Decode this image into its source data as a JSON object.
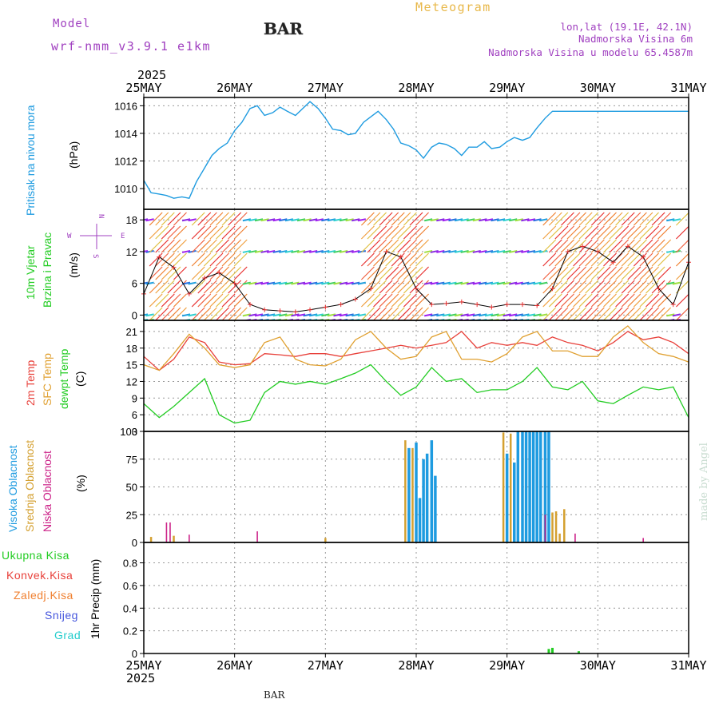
{
  "header": {
    "model_label": "Model",
    "model_name": "wrf-nmm_v3.9.1 e1km",
    "station": "BAR",
    "chart_title": "Meteogram",
    "coords": "lon,lat (19.1E, 42.1N)",
    "elevation": "Nadmorska Visina 6m",
    "model_elevation": "Nadmorska Visina u modelu 65.4587m"
  },
  "footer": {
    "station": "BAR",
    "credit": "made by Angel"
  },
  "x_axis": {
    "year": "2025",
    "ticks": [
      "25MAY",
      "26MAY",
      "27MAY",
      "28MAY",
      "29MAY",
      "30MAY",
      "31MAY"
    ]
  },
  "colors": {
    "pressure": "#1e9be0",
    "t2m": "#e8403a",
    "sfc": "#e0a030",
    "dewpt": "#22cc22",
    "high_cloud": "#1e9be0",
    "mid_cloud": "#d4a030",
    "low_cloud": "#cc2288",
    "title_purple": "#a040c0",
    "title_orange": "#e8b84a"
  },
  "chart_data": [
    {
      "type": "line",
      "panel": "pressure",
      "ylabel_main": "Pritisak na nivou mora",
      "ylabel_unit": "(hPa)",
      "ylim": [
        1008.5,
        1016.6
      ],
      "yticks": [
        1010,
        1012,
        1014,
        1016
      ],
      "x": [
        0,
        0.08,
        0.17,
        0.25,
        0.33,
        0.42,
        0.5,
        0.58,
        0.67,
        0.75,
        0.83,
        0.92,
        1.0,
        1.08,
        1.17,
        1.25,
        1.33,
        1.42,
        1.5,
        1.58,
        1.67,
        1.75,
        1.83,
        1.92,
        2.0,
        2.08,
        2.17,
        2.25,
        2.33,
        2.42,
        2.5,
        2.58,
        2.67,
        2.75,
        2.83,
        2.92,
        3.0,
        3.08,
        3.17,
        3.25,
        3.33,
        3.42,
        3.5,
        3.58,
        3.67,
        3.75,
        3.83,
        3.92,
        4.0,
        4.08,
        4.17,
        4.25,
        4.33,
        4.42,
        4.5,
        4.58,
        4.67,
        4.75,
        4.83,
        4.92,
        5.0,
        5.08,
        5.17,
        5.25,
        5.33,
        5.42,
        5.5,
        5.58,
        5.67,
        5.75,
        5.83,
        5.92,
        6.0
      ],
      "series": [
        {
          "values": [
            1010.6,
            1009.7,
            1009.6,
            1009.5,
            1009.3,
            1009.4,
            1009.3,
            1010.5,
            1011.5,
            1012.4,
            1012.9,
            1013.3,
            1014.2,
            1014.8,
            1015.8,
            1016.0,
            1015.3,
            1015.5,
            1015.9,
            1015.6,
            1015.3,
            1015.8,
            1016.3,
            1015.8,
            1015.1,
            1014.3,
            1014.2,
            1013.9,
            1014.0,
            1014.8,
            1015.2,
            1015.6,
            1015.0,
            1014.3,
            1013.3,
            1013.1,
            1012.8,
            1012.2,
            1013.0,
            1013.3,
            1013.2,
            1012.9,
            1012.4,
            1013.0,
            1013.0,
            1013.4,
            1012.9,
            1013.0,
            1013.4,
            1013.7,
            1013.5,
            1013.7,
            1014.4,
            1015.1,
            1015.6,
            1015.6,
            1015.6,
            1015.6,
            1015.6,
            1015.6,
            1015.6,
            1015.6,
            1015.6,
            1015.6,
            1015.6,
            1015.6,
            1015.6,
            1015.6,
            1015.6,
            1015.6,
            1015.6,
            1015.6,
            1015.6
          ]
        }
      ]
    },
    {
      "type": "line",
      "panel": "wind",
      "ylabel_main": "10m Vjetar",
      "ylabel_sub": "Brzina i Pravac",
      "ylabel_unit": "(m/s)",
      "compass": {
        "n": "N",
        "s": "S",
        "w": "W",
        "e": "E"
      },
      "ylim": [
        -1,
        20
      ],
      "yticks": [
        0,
        6,
        12,
        18
      ],
      "x": [
        0,
        0.17,
        0.33,
        0.5,
        0.67,
        0.83,
        1.0,
        1.17,
        1.33,
        1.5,
        1.67,
        1.83,
        2.0,
        2.17,
        2.33,
        2.5,
        2.67,
        2.83,
        3.0,
        3.17,
        3.33,
        3.5,
        3.67,
        3.83,
        4.0,
        4.17,
        4.33,
        4.5,
        4.67,
        4.83,
        5.0,
        5.17,
        5.33,
        5.5,
        5.67,
        5.83,
        6.0
      ],
      "series": [
        {
          "name": "speed",
          "values": [
            4,
            11,
            9,
            4,
            7,
            8,
            6,
            2,
            1,
            0.8,
            0.6,
            1,
            1.5,
            2,
            3,
            5,
            12,
            11,
            5,
            2,
            2.2,
            2.5,
            2,
            1.5,
            2,
            2,
            1.8,
            5,
            12,
            13,
            12,
            10,
            13,
            11,
            5,
            2,
            10
          ]
        }
      ]
    },
    {
      "type": "line",
      "panel": "temperature",
      "ylabel_main": "2m Temp",
      "ylabel_sfc": "SFC Temp",
      "ylabel_dew": "dewpt Temp",
      "ylabel_unit": "(C)",
      "ylim": [
        3,
        23
      ],
      "yticks": [
        3,
        6,
        9,
        12,
        15,
        18,
        21
      ],
      "x": [
        0,
        0.17,
        0.33,
        0.5,
        0.67,
        0.83,
        1.0,
        1.17,
        1.33,
        1.5,
        1.67,
        1.83,
        2.0,
        2.17,
        2.33,
        2.5,
        2.67,
        2.83,
        3.0,
        3.17,
        3.33,
        3.5,
        3.67,
        3.83,
        4.0,
        4.17,
        4.33,
        4.5,
        4.67,
        4.83,
        5.0,
        5.17,
        5.33,
        5.5,
        5.67,
        5.83,
        6.0
      ],
      "series": [
        {
          "name": "2m Temp",
          "values": [
            16.5,
            14,
            16,
            20,
            19,
            15.5,
            15,
            15.2,
            17,
            16.8,
            16.5,
            17,
            17,
            16.5,
            17,
            17.5,
            18,
            18.5,
            18,
            18.5,
            19,
            21,
            18,
            19,
            18.5,
            19,
            18.5,
            20,
            19,
            18.5,
            17.5,
            19,
            21,
            19.5,
            20,
            19,
            17
          ]
        },
        {
          "name": "SFC Temp",
          "values": [
            15,
            14,
            17,
            20.5,
            18,
            15,
            14.5,
            15,
            19,
            20,
            16,
            15,
            14.8,
            16,
            19.5,
            21,
            18,
            16,
            16.5,
            20,
            21,
            16,
            16,
            15.5,
            17,
            20,
            21,
            17.5,
            17.5,
            16.5,
            16.5,
            20,
            22,
            19,
            17,
            16.5,
            15.5
          ]
        },
        {
          "name": "dewpt Temp",
          "values": [
            8,
            5.5,
            7.5,
            10,
            12.5,
            6,
            4.5,
            5,
            10,
            12,
            11.5,
            12,
            11.5,
            12.5,
            13.5,
            15,
            12,
            9.5,
            11,
            14.5,
            12,
            12.5,
            10,
            10.5,
            10.5,
            12,
            14.5,
            11,
            10.5,
            12,
            8.5,
            8,
            9.5,
            11,
            10.5,
            11,
            5.5
          ]
        }
      ]
    },
    {
      "type": "bar",
      "panel": "clouds",
      "ylabel_high": "Visoka Oblacnost",
      "ylabel_mid": "Srednja Oblacnost",
      "ylabel_low": "Niska Oblacnost",
      "ylabel_unit": "(%)",
      "ylim": [
        0,
        100
      ],
      "yticks": [
        0,
        25,
        50,
        75,
        100
      ],
      "series": [
        {
          "name": "high",
          "x": [
            2.92,
            3.0,
            3.04,
            3.08,
            3.12,
            3.17,
            3.21,
            4.0,
            4.08,
            4.12,
            4.17,
            4.21,
            4.25,
            4.29,
            4.33,
            4.37,
            4.42,
            4.46
          ],
          "values": [
            85,
            90,
            40,
            75,
            80,
            92,
            60,
            80,
            72,
            100,
            100,
            100,
            100,
            100,
            100,
            100,
            100,
            100
          ]
        },
        {
          "name": "mid",
          "x": [
            0.08,
            0.33,
            2.0,
            2.88,
            2.96,
            3.96,
            4.04,
            4.5,
            4.54,
            4.58,
            4.63
          ],
          "values": [
            5,
            6,
            4,
            92,
            85,
            99,
            98,
            27,
            28,
            8,
            30
          ]
        },
        {
          "name": "low",
          "x": [
            0.25,
            0.29,
            0.5,
            1.25,
            4.42,
            4.75,
            5.5
          ],
          "values": [
            18,
            18,
            7,
            10,
            25,
            8,
            4
          ]
        }
      ]
    },
    {
      "type": "bar",
      "panel": "precip",
      "legend": [
        "Ukupna Kisa",
        "Konvek.Kisa",
        "Zaledj.Kisa",
        "Snijeg",
        "Grad"
      ],
      "ylabel_unit": "1hr Precip (mm)",
      "ylim": [
        0,
        0.98
      ],
      "yticks": [
        0,
        0.2,
        0.4,
        0.6,
        0.8
      ],
      "ytick_labels": [
        "0",
        "0.2",
        "0.4",
        "0.6",
        "0.8"
      ],
      "series": [
        {
          "name": "Ukupna Kisa",
          "x": [
            4.46,
            4.5,
            4.79
          ],
          "values": [
            0.04,
            0.05,
            0.02
          ]
        }
      ]
    }
  ]
}
